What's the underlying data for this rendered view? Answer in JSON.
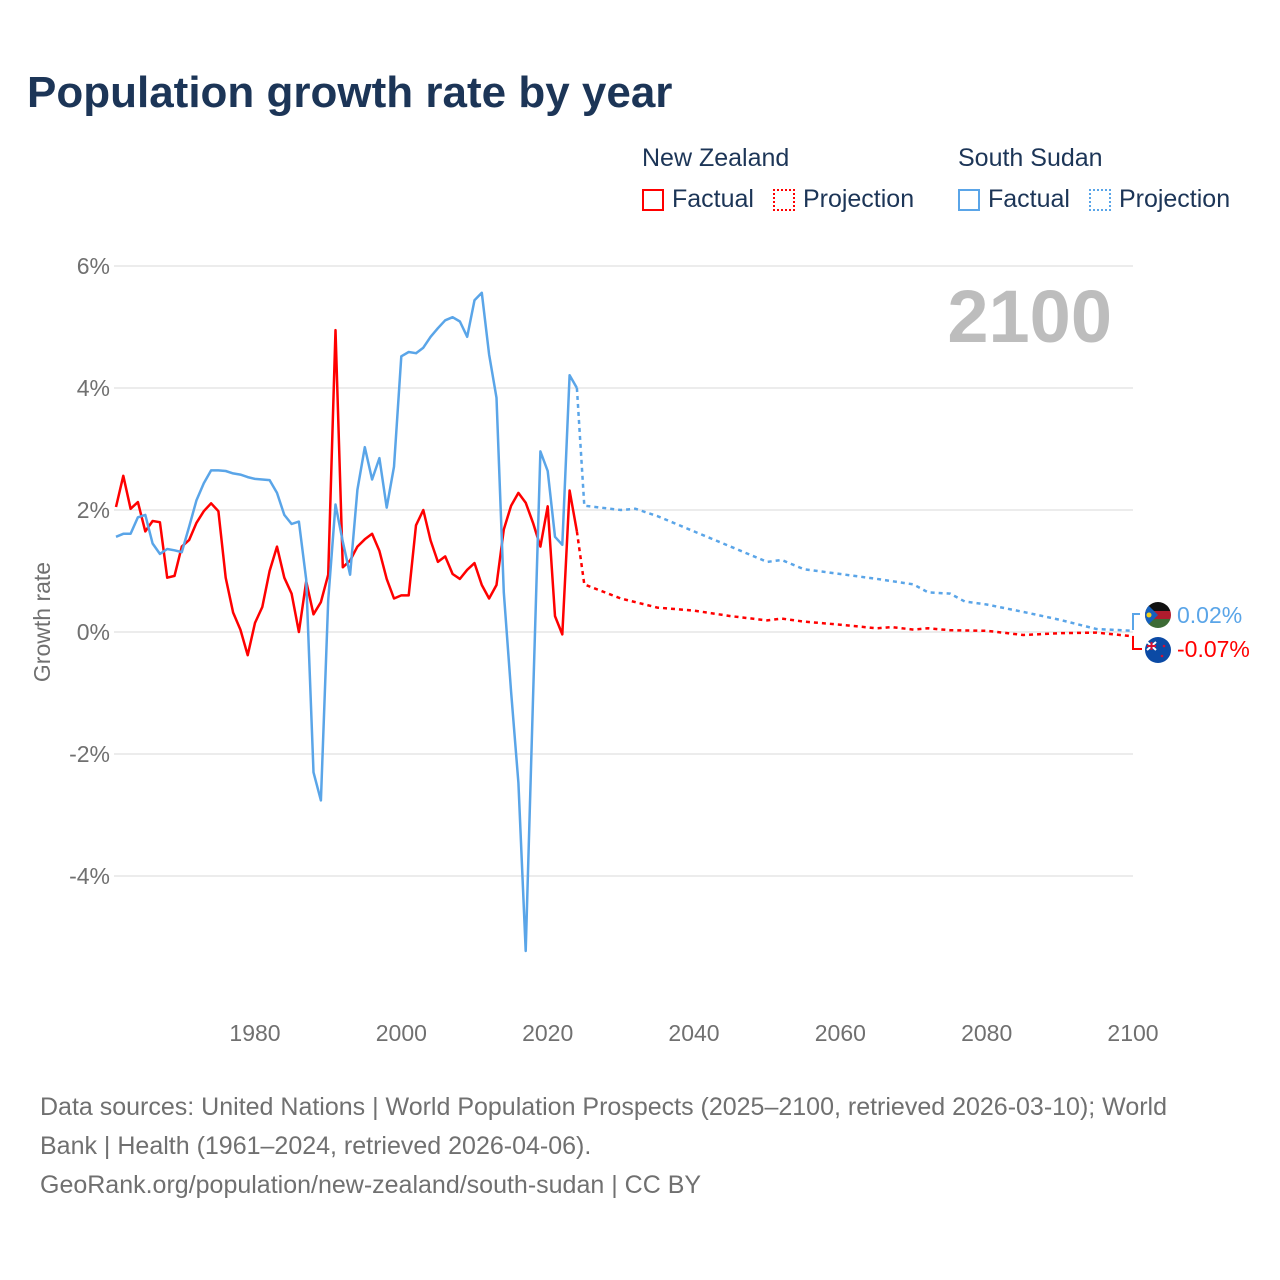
{
  "title": "Population growth rate by year",
  "year_label": "2100",
  "legend": [
    {
      "name": "New Zealand",
      "factual": "Factual",
      "projection": "Projection",
      "color": "#ff0000"
    },
    {
      "name": "South Sudan",
      "factual": "Factual",
      "projection": "Projection",
      "color": "#5aa5e8"
    }
  ],
  "end_labels": {
    "south_sudan": "0.02%",
    "new_zealand": "-0.07%"
  },
  "footer": {
    "sources": "Data sources: United Nations | World Population Prospects (2025–2100, retrieved 2026-03-10); World Bank | Health (1961–2024, retrieved 2026-04-06).",
    "credit": "GeoRank.org/population/new-zealand/south-sudan | CC BY"
  },
  "chart_data": {
    "type": "line",
    "title": "Population growth rate by year",
    "xlabel": "",
    "ylabel": "Growth rate",
    "xlim": [
      1961,
      2100
    ],
    "ylim": [
      -6,
      6
    ],
    "x_ticks": [
      1980,
      2000,
      2020,
      2040,
      2060,
      2080,
      2100
    ],
    "x_tick_labels": [
      "1980",
      "2000",
      "2020",
      "2040",
      "2060",
      "2080",
      "2100"
    ],
    "y_ticks": [
      6,
      4,
      2,
      0,
      -2,
      -4
    ],
    "y_tick_labels": [
      "6%",
      "4%",
      "2%",
      "0%",
      "-2%",
      "-4%"
    ],
    "grid": true,
    "series": [
      {
        "name": "New Zealand Factual",
        "color": "#ff0000",
        "style": "solid",
        "x": [
          1961,
          1962,
          1963,
          1964,
          1965,
          1966,
          1967,
          1968,
          1969,
          1970,
          1971,
          1972,
          1973,
          1974,
          1975,
          1976,
          1977,
          1978,
          1979,
          1980,
          1981,
          1982,
          1983,
          1984,
          1985,
          1986,
          1987,
          1988,
          1989,
          1990,
          1991,
          1992,
          1993,
          1994,
          1995,
          1996,
          1997,
          1998,
          1999,
          2000,
          2001,
          2002,
          2003,
          2004,
          2005,
          2006,
          2007,
          2008,
          2009,
          2010,
          2011,
          2012,
          2013,
          2014,
          2015,
          2016,
          2017,
          2018,
          2019,
          2020,
          2021,
          2022,
          2023,
          2024
        ],
        "y": [
          2.05,
          2.56,
          2.02,
          2.13,
          1.65,
          1.82,
          1.8,
          0.89,
          0.92,
          1.4,
          1.51,
          1.79,
          1.98,
          2.11,
          1.98,
          0.89,
          0.32,
          0.04,
          -0.38,
          0.15,
          0.41,
          1.0,
          1.4,
          0.89,
          0.63,
          0.0,
          0.83,
          0.29,
          0.49,
          0.94,
          4.95,
          1.06,
          1.17,
          1.4,
          1.52,
          1.61,
          1.33,
          0.87,
          0.55,
          0.6,
          0.6,
          1.75,
          2.0,
          1.5,
          1.15,
          1.24,
          0.95,
          0.87,
          1.02,
          1.13,
          0.77,
          0.55,
          0.77,
          1.68,
          2.07,
          2.28,
          2.12,
          1.79,
          1.4,
          2.06,
          0.26,
          -0.04,
          2.32,
          1.65
        ]
      },
      {
        "name": "New Zealand Projection",
        "color": "#ff0000",
        "style": "dotted",
        "x": [
          2024,
          2025,
          2030,
          2035,
          2040,
          2045,
          2050,
          2052,
          2055,
          2060,
          2065,
          2067,
          2070,
          2072,
          2075,
          2080,
          2085,
          2090,
          2095,
          2100
        ],
        "y": [
          1.65,
          0.78,
          0.55,
          0.4,
          0.35,
          0.26,
          0.19,
          0.22,
          0.17,
          0.12,
          0.06,
          0.08,
          0.04,
          0.06,
          0.03,
          0.02,
          -0.05,
          -0.02,
          -0.01,
          -0.07
        ]
      },
      {
        "name": "South Sudan Factual",
        "color": "#5aa5e8",
        "style": "solid",
        "x": [
          1961,
          1962,
          1963,
          1964,
          1965,
          1966,
          1967,
          1968,
          1969,
          1970,
          1971,
          1972,
          1973,
          1974,
          1975,
          1976,
          1977,
          1978,
          1979,
          1980,
          1981,
          1982,
          1983,
          1984,
          1985,
          1986,
          1987,
          1988,
          1989,
          1990,
          1991,
          1992,
          1993,
          1994,
          1995,
          1996,
          1997,
          1998,
          1999,
          2000,
          2001,
          2002,
          2003,
          2004,
          2005,
          2006,
          2007,
          2008,
          2009,
          2010,
          2011,
          2012,
          2013,
          2014,
          2015,
          2016,
          2017,
          2018,
          2019,
          2020,
          2021,
          2022,
          2023,
          2024
        ],
        "y": [
          1.56,
          1.61,
          1.61,
          1.88,
          1.92,
          1.45,
          1.28,
          1.36,
          1.34,
          1.31,
          1.73,
          2.16,
          2.44,
          2.65,
          2.65,
          2.64,
          2.6,
          2.58,
          2.54,
          2.51,
          2.5,
          2.49,
          2.28,
          1.92,
          1.77,
          1.81,
          0.86,
          -2.3,
          -2.76,
          0.52,
          2.09,
          1.48,
          0.94,
          2.33,
          3.03,
          2.5,
          2.85,
          2.04,
          2.71,
          4.52,
          4.59,
          4.57,
          4.66,
          4.84,
          4.98,
          5.11,
          5.16,
          5.09,
          4.84,
          5.44,
          5.56,
          4.55,
          3.84,
          0.65,
          -0.98,
          -2.47,
          -5.23,
          -1.1,
          2.96,
          2.64,
          1.56,
          1.43,
          4.21,
          4.0
        ]
      },
      {
        "name": "South Sudan Projection",
        "color": "#5aa5e8",
        "style": "dotted",
        "x": [
          2024,
          2025,
          2030,
          2032,
          2035,
          2040,
          2045,
          2050,
          2052,
          2055,
          2060,
          2065,
          2070,
          2072,
          2075,
          2077,
          2080,
          2085,
          2090,
          2095,
          2100
        ],
        "y": [
          4.0,
          2.07,
          2.0,
          2.02,
          1.9,
          1.65,
          1.4,
          1.15,
          1.18,
          1.03,
          0.95,
          0.87,
          0.78,
          0.65,
          0.63,
          0.5,
          0.45,
          0.33,
          0.2,
          0.05,
          0.02
        ]
      }
    ]
  }
}
